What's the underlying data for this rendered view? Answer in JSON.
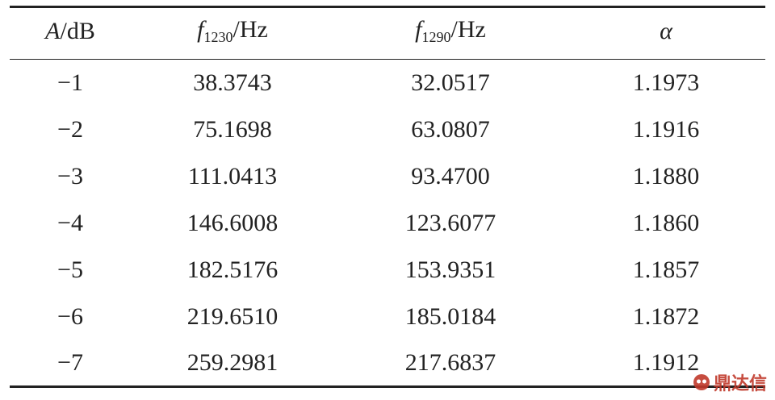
{
  "table": {
    "header": [
      {
        "symbol": "A",
        "unit": "/dB"
      },
      {
        "symbol": "f",
        "subscript": "1230",
        "unit": "/Hz"
      },
      {
        "symbol": "f",
        "subscript": "1290",
        "unit": "/Hz"
      },
      {
        "symbol": "α"
      }
    ],
    "rows": [
      [
        "−1",
        "38.3743",
        "32.0517",
        "1.1973"
      ],
      [
        "−2",
        "75.1698",
        "63.0807",
        "1.1916"
      ],
      [
        "−3",
        "111.0413",
        "93.4700",
        "1.1880"
      ],
      [
        "−4",
        "146.6008",
        "123.6077",
        "1.1860"
      ],
      [
        "−5",
        "182.5176",
        "153.9351",
        "1.1857"
      ],
      [
        "−6",
        "219.6510",
        "185.0184",
        "1.1872"
      ],
      [
        "−7",
        "259.2981",
        "217.6837",
        "1.1912"
      ]
    ]
  },
  "watermark": "鼎达信"
}
